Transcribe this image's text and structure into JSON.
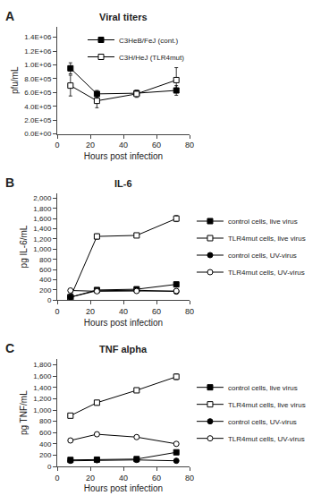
{
  "chart_data": [
    {
      "type": "line",
      "title": "Viral titers",
      "annotations": [
        "A"
      ],
      "xlabel": "Hours post infection",
      "ylabel": "pfu/mL",
      "x": [
        8,
        24,
        48,
        72
      ],
      "series": [
        {
          "name": "C3HeB/FeJ (cont.)",
          "color": "#000000",
          "marker": "square",
          "line_style": "solid",
          "values": [
            950000,
            580000,
            590000,
            630000
          ],
          "errors": [
            80000,
            50000,
            40000,
            70000
          ]
        },
        {
          "name": "C3H/HeJ (TLR4mut)",
          "color": "#000000",
          "marker": "square-open",
          "line_style": "solid",
          "values": [
            700000,
            480000,
            580000,
            780000
          ],
          "errors": [
            150000,
            100000,
            50000,
            180000
          ]
        }
      ],
      "xlim": [
        0,
        80
      ],
      "xticks": [
        0,
        20,
        40,
        60,
        80
      ],
      "ylim": [
        0,
        1550000
      ],
      "yticks": [
        {
          "value": 0,
          "label": "0.0E+00"
        },
        {
          "value": 200000,
          "label": "2.0E+05"
        },
        {
          "value": 400000,
          "label": "4.0E+05"
        },
        {
          "value": 600000,
          "label": "6.0E+05"
        },
        {
          "value": 800000,
          "label": "8.0E+05"
        },
        {
          "value": 1000000,
          "label": "1.0E+06"
        },
        {
          "value": 1200000,
          "label": "1.2E+06"
        },
        {
          "value": 1400000,
          "label": "1.4E+06"
        }
      ],
      "grid": false,
      "legend": "upper right"
    },
    {
      "type": "line",
      "title": "IL-6",
      "annotations": [
        "B"
      ],
      "xlabel": "Hours post infection",
      "ylabel": "pg IL-6/mL",
      "x": [
        8,
        24,
        48,
        72
      ],
      "series": [
        {
          "name": "control cells, live virus",
          "color": "#000000",
          "marker": "square",
          "line_style": "solid",
          "values": [
            60,
            200,
            215,
            310
          ],
          "errors": [
            15,
            30,
            25,
            35
          ]
        },
        {
          "name": "TLR4mut cells, live virus",
          "color": "#000000",
          "marker": "square-open",
          "line_style": "solid",
          "values": [
            60,
            1250,
            1270,
            1600
          ],
          "errors": [
            10,
            50,
            40,
            60
          ]
        },
        {
          "name": "control cells, UV-virus",
          "color": "#000000",
          "marker": "circle",
          "line_style": "solid",
          "values": [
            60,
            185,
            195,
            170
          ],
          "errors": [
            10,
            20,
            20,
            20
          ]
        },
        {
          "name": "TLR4mut cells, UV-virus",
          "color": "#000000",
          "marker": "circle-open",
          "line_style": "solid",
          "values": [
            190,
            175,
            180,
            180
          ],
          "errors": [
            15,
            15,
            15,
            15
          ]
        }
      ],
      "xlim": [
        0,
        80
      ],
      "xticks": [
        0,
        20,
        40,
        60,
        80
      ],
      "ylim": [
        0,
        2100
      ],
      "yticks": [
        0,
        200,
        400,
        600,
        800,
        {
          "value": 1000,
          "label": "1,000"
        },
        {
          "value": 1200,
          "label": "1,200"
        },
        {
          "value": 1400,
          "label": "1,400"
        },
        {
          "value": 1600,
          "label": "1,600"
        },
        {
          "value": 1800,
          "label": "1,800"
        },
        {
          "value": 2000,
          "label": "2,000"
        }
      ],
      "grid": false,
      "legend": "right"
    },
    {
      "type": "line",
      "title": "TNF alpha",
      "annotations": [
        "C"
      ],
      "xlabel": "Hours post infection",
      "ylabel": "pg TNF/mL",
      "x": [
        8,
        24,
        48,
        72
      ],
      "series": [
        {
          "name": "control cells, live virus",
          "color": "#000000",
          "marker": "square",
          "line_style": "solid",
          "values": [
            115,
            120,
            130,
            250
          ],
          "errors": [
            15,
            15,
            15,
            20
          ]
        },
        {
          "name": "TLR4mut cells, live virus",
          "color": "#000000",
          "marker": "square-open",
          "line_style": "solid",
          "values": [
            900,
            1130,
            1350,
            1590
          ],
          "errors": [
            20,
            40,
            40,
            50
          ]
        },
        {
          "name": "control cells, UV-virus",
          "color": "#000000",
          "marker": "circle",
          "line_style": "solid",
          "values": [
            100,
            110,
            115,
            100
          ],
          "errors": [
            10,
            10,
            10,
            10
          ]
        },
        {
          "name": "TLR4mut cells, UV-virus",
          "color": "#000000",
          "marker": "circle-open",
          "line_style": "solid",
          "values": [
            460,
            570,
            520,
            400
          ],
          "errors": [
            25,
            30,
            25,
            25
          ]
        }
      ],
      "xlim": [
        0,
        80
      ],
      "xticks": [
        0,
        20,
        40,
        60,
        80
      ],
      "ylim": [
        0,
        1900
      ],
      "yticks": [
        0,
        200,
        400,
        600,
        800,
        {
          "value": 1000,
          "label": "1,000"
        },
        {
          "value": 1200,
          "label": "1,200"
        },
        {
          "value": 1400,
          "label": "1,400"
        },
        {
          "value": 1600,
          "label": "1,600"
        },
        {
          "value": 1800,
          "label": "1,800"
        }
      ],
      "grid": false,
      "legend": "right"
    }
  ]
}
